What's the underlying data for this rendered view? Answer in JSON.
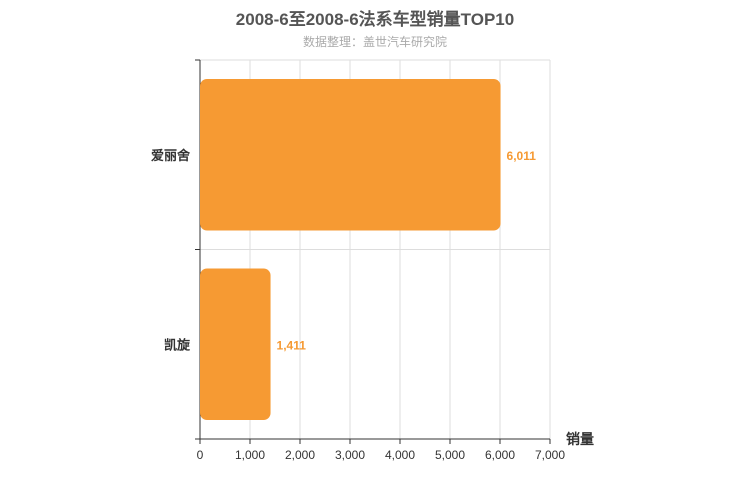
{
  "chart_data": {
    "type": "bar",
    "orientation": "horizontal",
    "title": "2008-6至2008-6法系车型销量TOP10",
    "subtitle": "数据整理：盖世汽车研究院",
    "categories": [
      "爱丽舍",
      "凯旋"
    ],
    "values": [
      6011,
      1411
    ],
    "value_labels": [
      "6,011",
      "1,411"
    ],
    "xlabel": "销量",
    "xlim": [
      0,
      7000
    ],
    "x_ticks": [
      0,
      1000,
      2000,
      3000,
      4000,
      5000,
      6000,
      7000
    ],
    "x_tick_labels": [
      "0",
      "1,000",
      "2,000",
      "3,000",
      "4,000",
      "5,000",
      "6,000",
      "7,000"
    ],
    "grid": true,
    "bar_color": "#f69a33"
  }
}
